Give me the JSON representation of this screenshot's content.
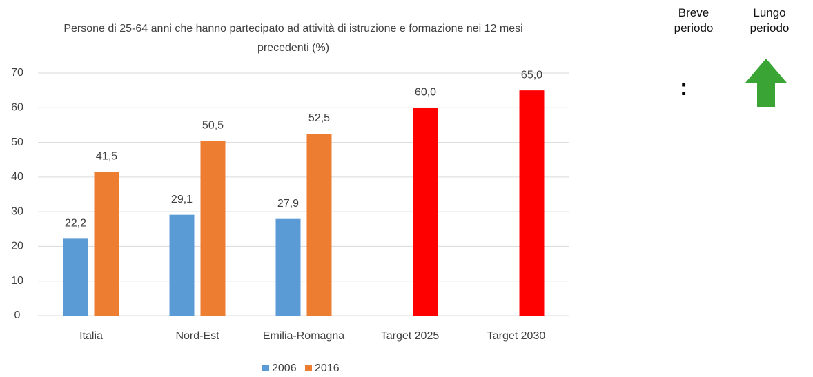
{
  "chart_data": {
    "type": "bar",
    "title": "Persone di 25-64 anni che hanno partecipato ad attività di istruzione e formazione nei 12 mesi precedenti (%)",
    "categories": [
      "Italia",
      "Nord-Est",
      "Emilia-Romagna",
      "Target 2025",
      "Target 2030"
    ],
    "series": [
      {
        "name": "2006",
        "color": "#5b9bd5",
        "values": [
          22.2,
          29.1,
          27.9,
          null,
          null
        ],
        "value_labels": [
          "22,2",
          "29,1",
          "27,9",
          null,
          null
        ]
      },
      {
        "name": "2016",
        "color": "#ed7d31",
        "point_colors": [
          "#ed7d31",
          "#ed7d31",
          "#ed7d31",
          "#ff0000",
          "#ff0000"
        ],
        "values": [
          41.5,
          50.5,
          52.5,
          60.0,
          65.0
        ],
        "value_labels": [
          "41,5",
          "50,5",
          "52,5",
          "60,0",
          "65,0"
        ]
      }
    ],
    "ylim": [
      0,
      70
    ],
    "yticks": [
      0,
      10,
      20,
      30,
      40,
      50,
      60,
      70
    ],
    "grid": true,
    "legend": "bottom"
  },
  "indicators": {
    "short_term": {
      "label": "Breve periodo",
      "symbol": ":"
    },
    "long_term": {
      "label": "Lungo periodo"
    }
  }
}
